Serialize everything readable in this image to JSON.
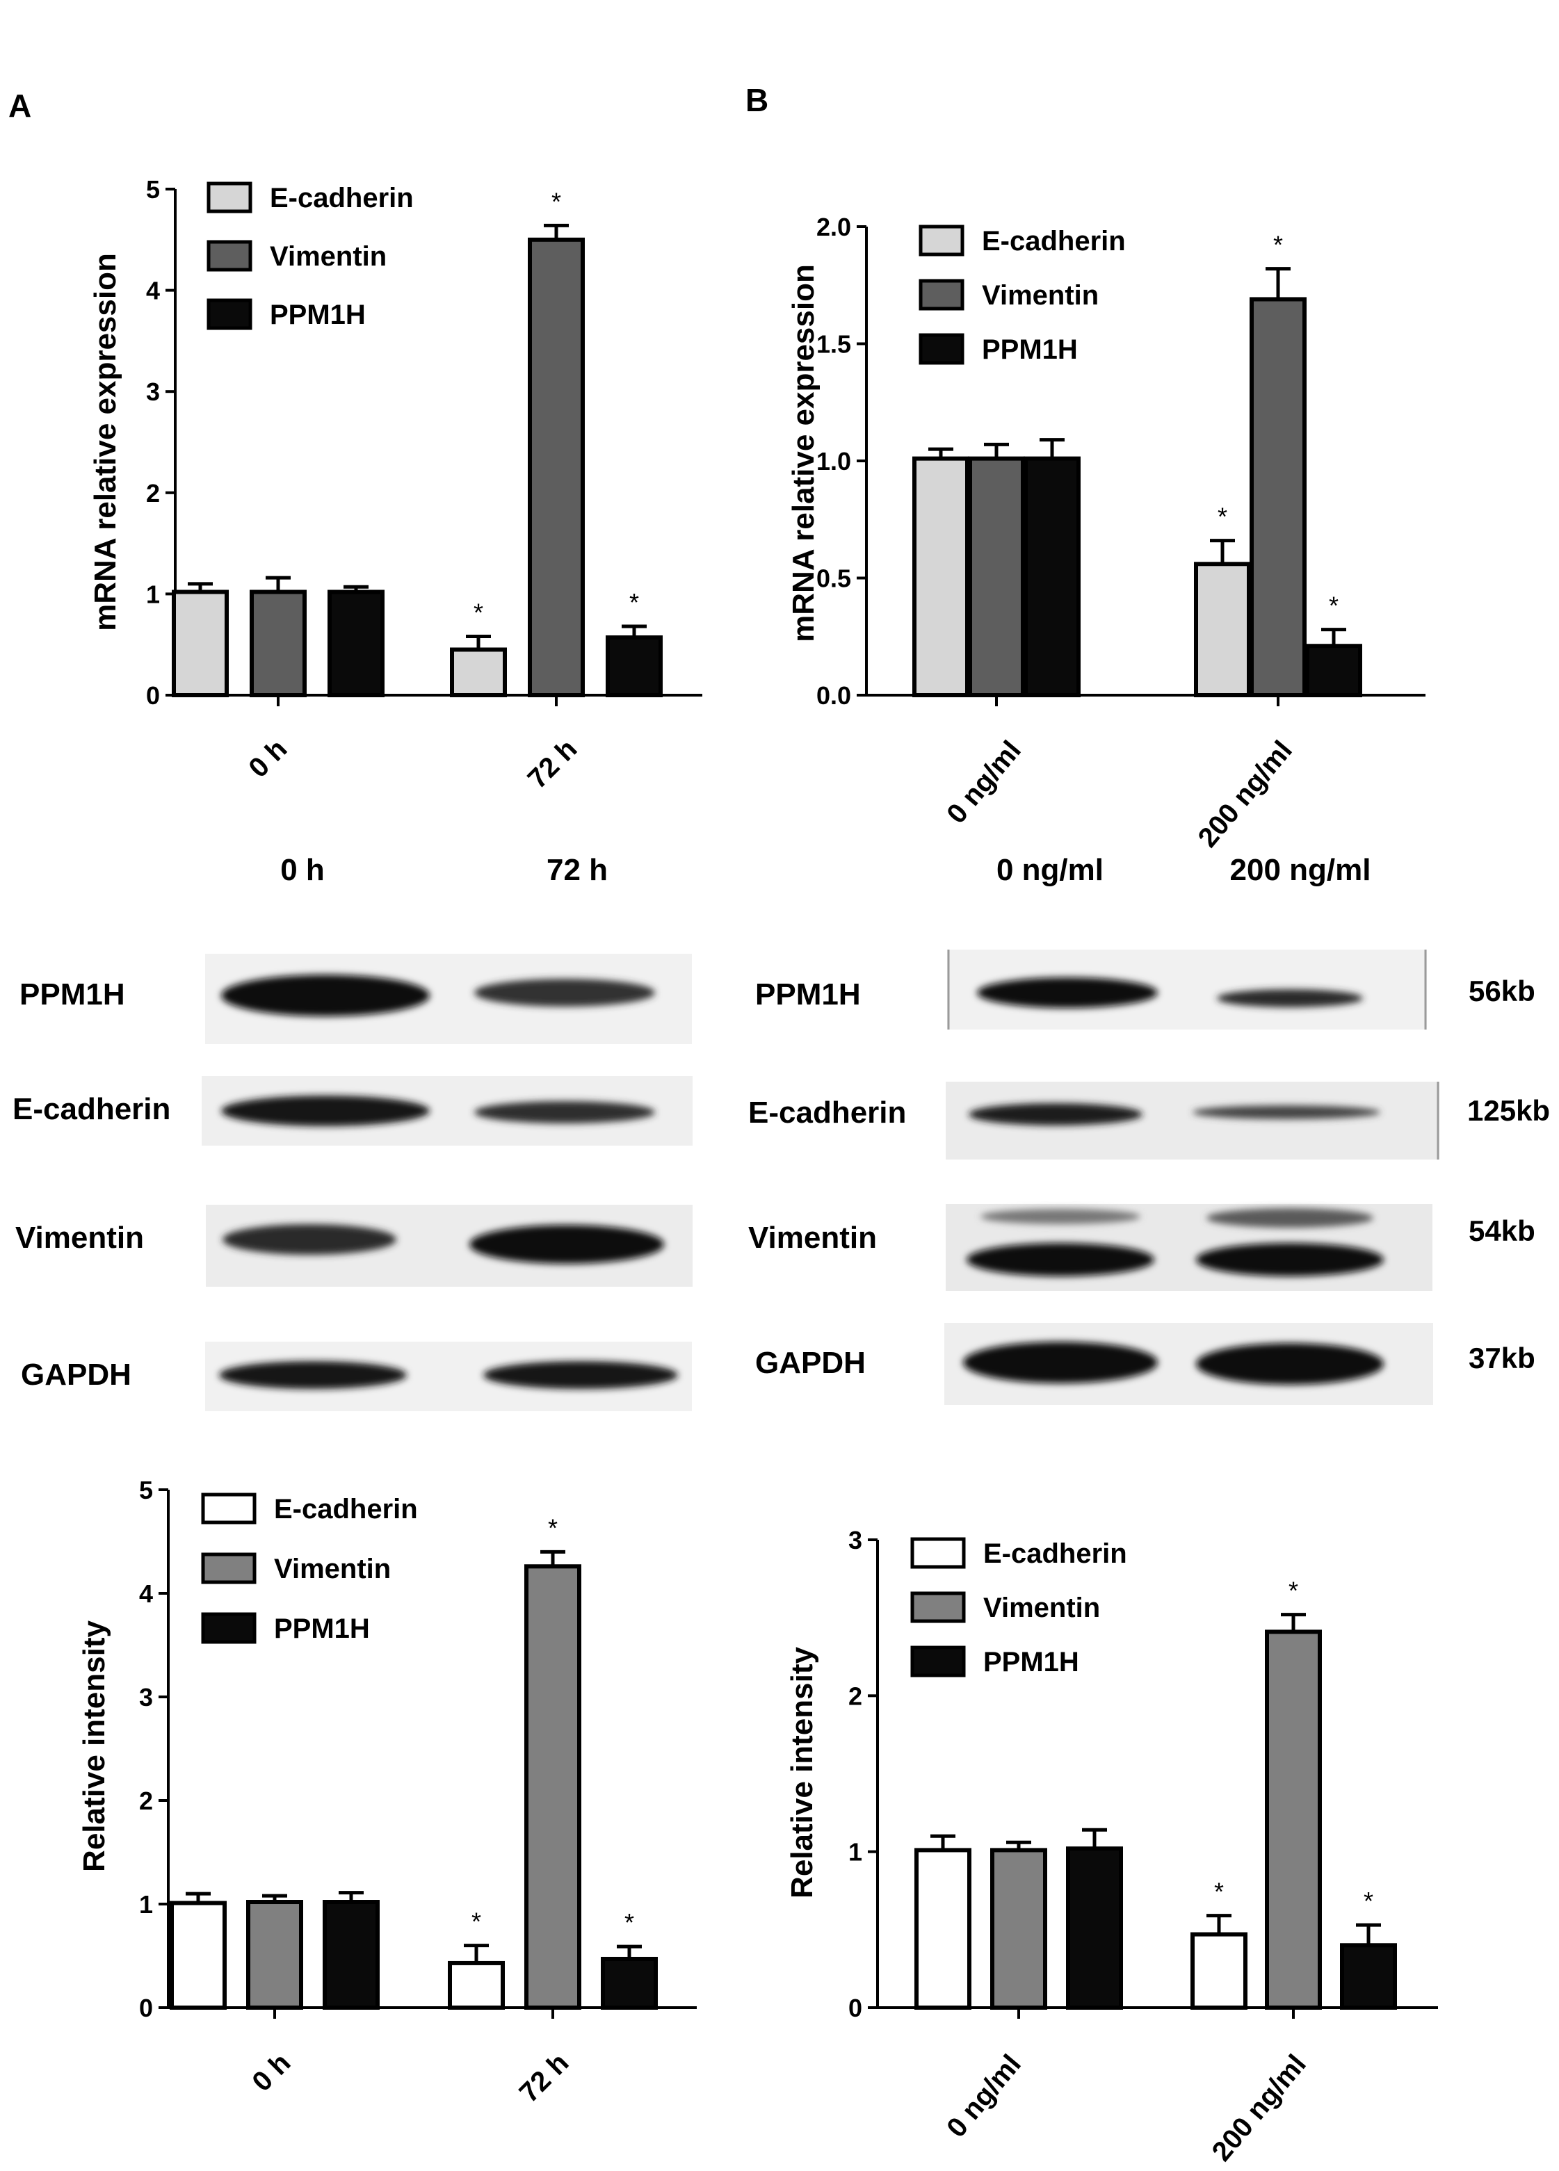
{
  "panels": {
    "a": "A",
    "b": "B"
  },
  "colors": {
    "ecad_mrna": "#d6d6d6",
    "vim_mrna": "#5e5e5e",
    "ppm_mrna": "#0a0a0a",
    "ecad_int": "#ffffff",
    "vim_int": "#808080",
    "ppm_int": "#0a0a0a"
  },
  "chart_data": [
    {
      "type": "bar",
      "ylabel": "mRNA relative expression",
      "ylim": [
        0,
        5
      ],
      "yticks": [
        "0",
        "1",
        "2",
        "3",
        "4",
        "5"
      ],
      "categories": [
        "0 h",
        "72 h"
      ],
      "legend_position": "top-left",
      "series": [
        {
          "name": "E-cadherin",
          "values": [
            1.02,
            0.45
          ],
          "errors": [
            0.08,
            0.13
          ],
          "significant": [
            false,
            true
          ]
        },
        {
          "name": "Vimentin",
          "values": [
            1.02,
            4.5
          ],
          "errors": [
            0.14,
            0.14
          ],
          "significant": [
            false,
            true
          ]
        },
        {
          "name": "PPM1H",
          "values": [
            1.02,
            0.57
          ],
          "errors": [
            0.05,
            0.11
          ],
          "significant": [
            false,
            true
          ]
        }
      ]
    },
    {
      "type": "bar",
      "ylabel": "mRNA relative expression",
      "ylim": [
        0,
        2
      ],
      "yticks": [
        "0.0",
        "0.5",
        "1.0",
        "1.5",
        "2.0"
      ],
      "categories": [
        "0 ng/ml",
        "200 ng/ml"
      ],
      "legend_position": "top-left",
      "series": [
        {
          "name": "E-cadherin",
          "values": [
            1.01,
            0.56
          ],
          "errors": [
            0.04,
            0.1
          ],
          "significant": [
            false,
            true
          ]
        },
        {
          "name": "Vimentin",
          "values": [
            1.01,
            1.69
          ],
          "errors": [
            0.06,
            0.13
          ],
          "significant": [
            false,
            true
          ]
        },
        {
          "name": "PPM1H",
          "values": [
            1.01,
            0.21
          ],
          "errors": [
            0.08,
            0.07
          ],
          "significant": [
            false,
            true
          ]
        }
      ]
    },
    {
      "type": "bar",
      "ylabel": "Relative intensity",
      "ylim": [
        0,
        5
      ],
      "yticks": [
        "0",
        "1",
        "2",
        "3",
        "4",
        "5"
      ],
      "categories": [
        "0 h",
        "72 h"
      ],
      "legend_position": "top-left",
      "series": [
        {
          "name": "E-cadherin",
          "values": [
            1.01,
            0.43
          ],
          "errors": [
            0.09,
            0.17
          ],
          "significant": [
            false,
            true
          ]
        },
        {
          "name": "Vimentin",
          "values": [
            1.02,
            4.26
          ],
          "errors": [
            0.06,
            0.14
          ],
          "significant": [
            false,
            true
          ]
        },
        {
          "name": "PPM1H",
          "values": [
            1.02,
            0.47
          ],
          "errors": [
            0.09,
            0.12
          ],
          "significant": [
            false,
            true
          ]
        }
      ]
    },
    {
      "type": "bar",
      "ylabel": "Relative intensity",
      "ylim": [
        0,
        3
      ],
      "yticks": [
        "0",
        "1",
        "2",
        "3"
      ],
      "categories": [
        "0 ng/ml",
        "200 ng/ml"
      ],
      "legend_position": "top-left",
      "series": [
        {
          "name": "E-cadherin",
          "values": [
            1.01,
            0.47
          ],
          "errors": [
            0.09,
            0.12
          ],
          "significant": [
            false,
            true
          ]
        },
        {
          "name": "Vimentin",
          "values": [
            1.01,
            2.41
          ],
          "errors": [
            0.05,
            0.11
          ],
          "significant": [
            false,
            true
          ]
        },
        {
          "name": "PPM1H",
          "values": [
            1.02,
            0.4
          ],
          "errors": [
            0.12,
            0.13
          ],
          "significant": [
            false,
            true
          ]
        }
      ]
    }
  ],
  "significance_mark": "*",
  "blots": {
    "left": {
      "headers": [
        "0 h",
        "72 h"
      ],
      "rows": [
        {
          "label": "PPM1H",
          "size": ""
        },
        {
          "label": "E-cadherin",
          "size": ""
        },
        {
          "label": "Vimentin",
          "size": ""
        },
        {
          "label": "GAPDH",
          "size": ""
        }
      ]
    },
    "right": {
      "headers": [
        "0 ng/ml",
        "200 ng/ml"
      ],
      "rows": [
        {
          "label": "PPM1H",
          "size": "56kb"
        },
        {
          "label": "E-cadherin",
          "size": "125kb"
        },
        {
          "label": "Vimentin",
          "size": "54kb"
        },
        {
          "label": "GAPDH",
          "size": "37kb"
        }
      ]
    }
  }
}
